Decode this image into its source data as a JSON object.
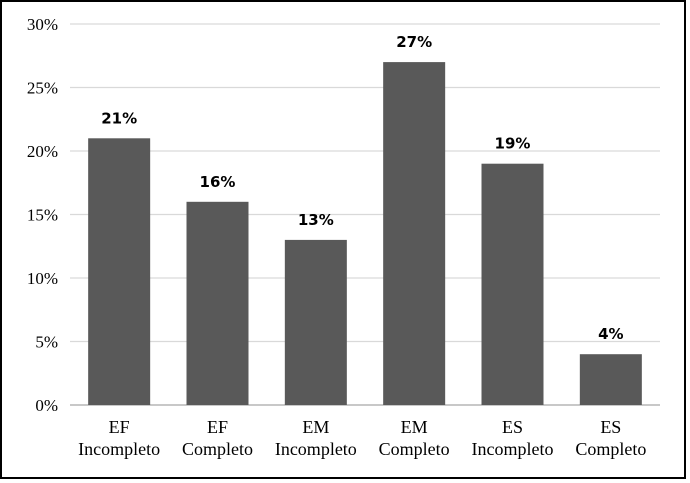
{
  "chart_data": {
    "type": "bar",
    "categories": [
      [
        "EF",
        "Incompleto"
      ],
      [
        "EF",
        "Completo"
      ],
      [
        "EM",
        "Incompleto"
      ],
      [
        "EM",
        "Completo"
      ],
      [
        "ES",
        "Incompleto"
      ],
      [
        "ES",
        "Completo"
      ]
    ],
    "values": [
      21,
      16,
      13,
      27,
      19,
      4
    ],
    "data_labels": [
      "21%",
      "16%",
      "13%",
      "27%",
      "19%",
      "4%"
    ],
    "y_ticks": [
      0,
      5,
      10,
      15,
      20,
      25,
      30
    ],
    "y_tick_labels": [
      "0%",
      "5%",
      "10%",
      "15%",
      "20%",
      "25%",
      "30%"
    ],
    "ylim": [
      0,
      30
    ],
    "grid": true,
    "legend": "none",
    "colors": {
      "bar": "#595959",
      "grid": "#d9d9d9",
      "axis": "#a6a6a6"
    }
  }
}
